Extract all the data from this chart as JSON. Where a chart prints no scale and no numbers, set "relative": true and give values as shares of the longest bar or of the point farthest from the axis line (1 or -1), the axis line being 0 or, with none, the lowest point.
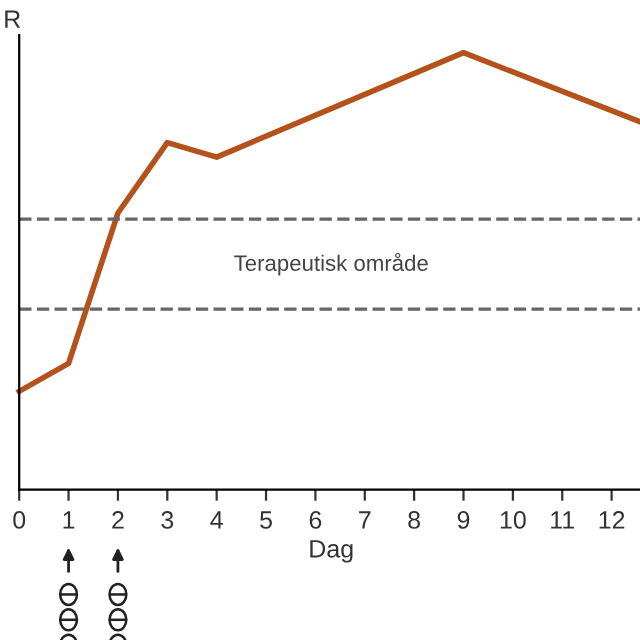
{
  "chart_data": {
    "type": "line",
    "relative": true,
    "ylabel": "R",
    "xlabel": "Dag",
    "x": [
      0,
      1,
      2,
      3,
      4,
      9,
      12.64
    ],
    "series": [
      {
        "color": "#b5521b",
        "values": [
          0.225,
          0.289,
          0.633,
          0.794,
          0.761,
          1,
          0.839
        ]
      }
    ],
    "xlim": [
      0,
      12.64
    ],
    "xticks": [
      0,
      1,
      2,
      3,
      4,
      5,
      6,
      7,
      8,
      9,
      10,
      11,
      12
    ],
    "ref_lines": [
      {
        "axis": "y",
        "value": 0.413,
        "color": "#666666",
        "line_style": "dashed"
      },
      {
        "axis": "y",
        "value": 0.619,
        "color": "#666666",
        "line_style": "dashed"
      }
    ],
    "annotations": [
      "Terapeutisk område"
    ],
    "grid": false,
    "legend": false,
    "marker": "none",
    "line_style": "solid"
  }
}
